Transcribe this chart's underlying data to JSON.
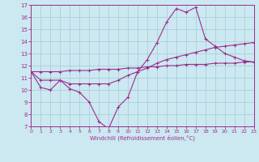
{
  "xlabel": "Windchill (Refroidissement éolien,°C)",
  "background_color": "#cce8f0",
  "grid_color": "#aad0dc",
  "line_color": "#9b2d8e",
  "x_min": 0,
  "x_max": 23,
  "y_min": 7,
  "y_max": 17,
  "series1_x": [
    0,
    1,
    2,
    3,
    4,
    5,
    6,
    7,
    8,
    9,
    10,
    11,
    12,
    13,
    14,
    15,
    16,
    17,
    18,
    19,
    20,
    21,
    22,
    23
  ],
  "series1_y": [
    11.5,
    10.2,
    10.0,
    10.8,
    10.1,
    9.8,
    9.0,
    7.4,
    6.8,
    8.6,
    9.4,
    11.5,
    12.5,
    13.9,
    15.6,
    16.7,
    16.4,
    16.8,
    14.2,
    13.6,
    13.0,
    12.7,
    12.4,
    12.3
  ],
  "series2_x": [
    0,
    1,
    2,
    3,
    4,
    5,
    6,
    7,
    8,
    9,
    10,
    11,
    12,
    13,
    14,
    15,
    16,
    17,
    18,
    19,
    20,
    21,
    22,
    23
  ],
  "series2_y": [
    11.5,
    10.8,
    10.8,
    10.8,
    10.5,
    10.5,
    10.5,
    10.5,
    10.5,
    10.8,
    11.2,
    11.5,
    11.8,
    12.2,
    12.5,
    12.7,
    12.9,
    13.1,
    13.3,
    13.5,
    13.6,
    13.7,
    13.8,
    13.9
  ],
  "series3_x": [
    0,
    1,
    2,
    3,
    4,
    5,
    6,
    7,
    8,
    9,
    10,
    11,
    12,
    13,
    14,
    15,
    16,
    17,
    18,
    19,
    20,
    21,
    22,
    23
  ],
  "series3_y": [
    11.5,
    11.5,
    11.5,
    11.5,
    11.6,
    11.6,
    11.6,
    11.7,
    11.7,
    11.7,
    11.8,
    11.8,
    11.9,
    11.9,
    12.0,
    12.0,
    12.1,
    12.1,
    12.1,
    12.2,
    12.2,
    12.2,
    12.3,
    12.3
  ],
  "x_ticks": [
    0,
    1,
    2,
    3,
    4,
    5,
    6,
    7,
    8,
    9,
    10,
    11,
    12,
    13,
    14,
    15,
    16,
    17,
    18,
    19,
    20,
    21,
    22,
    23
  ],
  "y_ticks": [
    7,
    8,
    9,
    10,
    11,
    12,
    13,
    14,
    15,
    16,
    17
  ]
}
